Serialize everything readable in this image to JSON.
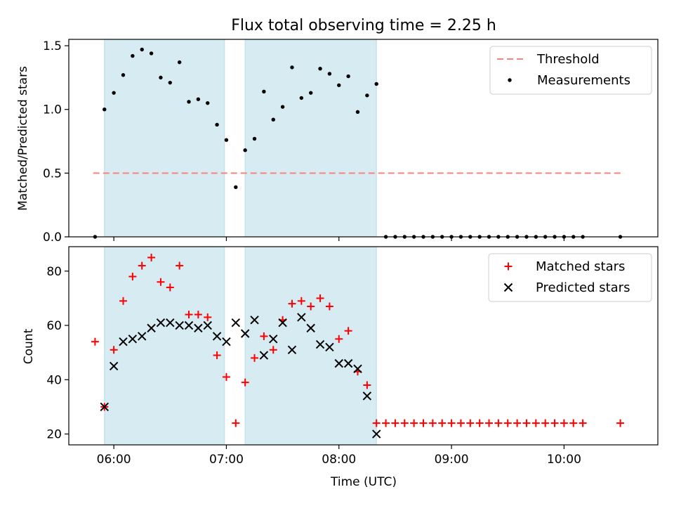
{
  "chart_data": [
    {
      "type": "scatter",
      "title": "Flux total observing time = 2.25 h",
      "ylabel": "Matched/Predicted stars",
      "xlabel": "",
      "ylim": [
        0,
        1.55
      ],
      "yticks": [
        0.0,
        0.5,
        1.0,
        1.5
      ],
      "ytick_labels": [
        "0.0",
        "0.5",
        "1.0",
        "1.5"
      ],
      "legend": {
        "position": "top-right",
        "entries": [
          "Threshold",
          "Measurements"
        ]
      },
      "threshold": {
        "name": "Threshold",
        "y": 0.5,
        "x_range": [
          "05:49",
          "10:32"
        ],
        "color": "#ff7f7f"
      },
      "series": [
        {
          "name": "Measurements",
          "color": "#000000",
          "points": [
            [
              "05:50",
              0.0
            ],
            [
              "05:55",
              1.0
            ],
            [
              "06:00",
              1.13
            ],
            [
              "06:05",
              1.27
            ],
            [
              "06:10",
              1.42
            ],
            [
              "06:15",
              1.47
            ],
            [
              "06:20",
              1.44
            ],
            [
              "06:25",
              1.25
            ],
            [
              "06:30",
              1.21
            ],
            [
              "06:35",
              1.37
            ],
            [
              "06:40",
              1.06
            ],
            [
              "06:45",
              1.08
            ],
            [
              "06:50",
              1.05
            ],
            [
              "06:55",
              0.88
            ],
            [
              "07:00",
              0.76
            ],
            [
              "07:05",
              0.39
            ],
            [
              "07:10",
              0.68
            ],
            [
              "07:15",
              0.77
            ],
            [
              "07:20",
              1.14
            ],
            [
              "07:25",
              0.92
            ],
            [
              "07:30",
              1.02
            ],
            [
              "07:35",
              1.33
            ],
            [
              "07:40",
              1.09
            ],
            [
              "07:45",
              1.13
            ],
            [
              "07:50",
              1.32
            ],
            [
              "07:55",
              1.28
            ],
            [
              "08:00",
              1.19
            ],
            [
              "08:05",
              1.26
            ],
            [
              "08:10",
              0.98
            ],
            [
              "08:15",
              1.11
            ],
            [
              "08:20",
              1.2
            ],
            [
              "08:25",
              0.0
            ],
            [
              "08:30",
              0.0
            ],
            [
              "08:35",
              0.0
            ],
            [
              "08:40",
              0.0
            ],
            [
              "08:45",
              0.0
            ],
            [
              "08:50",
              0.0
            ],
            [
              "08:55",
              0.0
            ],
            [
              "09:00",
              0.0
            ],
            [
              "09:05",
              0.0
            ],
            [
              "09:10",
              0.0
            ],
            [
              "09:15",
              0.0
            ],
            [
              "09:20",
              0.0
            ],
            [
              "09:25",
              0.0
            ],
            [
              "09:30",
              0.0
            ],
            [
              "09:35",
              0.0
            ],
            [
              "09:40",
              0.0
            ],
            [
              "09:45",
              0.0
            ],
            [
              "09:50",
              0.0
            ],
            [
              "09:55",
              0.0
            ],
            [
              "10:00",
              0.0
            ],
            [
              "10:05",
              0.0
            ],
            [
              "10:10",
              0.0
            ],
            [
              "10:30",
              0.0
            ]
          ]
        }
      ]
    },
    {
      "type": "scatter",
      "title": "",
      "xlabel": "Time (UTC)",
      "ylabel": "Count",
      "ylim": [
        16,
        89
      ],
      "yticks": [
        20,
        40,
        60,
        80
      ],
      "ytick_labels": [
        "20",
        "40",
        "60",
        "80"
      ],
      "xticks": [
        "06:00",
        "07:00",
        "08:00",
        "09:00",
        "10:00"
      ],
      "xlim": [
        "05:36",
        "10:50"
      ],
      "legend": {
        "position": "top-right",
        "entries": [
          "Matched stars",
          "Predicted stars"
        ]
      },
      "series": [
        {
          "name": "Matched stars",
          "marker": "plus",
          "color": "#ff0000",
          "points": [
            [
              "05:50",
              54
            ],
            [
              "05:55",
              30
            ],
            [
              "06:00",
              51
            ],
            [
              "06:05",
              69
            ],
            [
              "06:10",
              78
            ],
            [
              "06:15",
              82
            ],
            [
              "06:20",
              85
            ],
            [
              "06:25",
              76
            ],
            [
              "06:30",
              74
            ],
            [
              "06:35",
              82
            ],
            [
              "06:40",
              64
            ],
            [
              "06:45",
              64
            ],
            [
              "06:50",
              63
            ],
            [
              "06:55",
              49
            ],
            [
              "07:00",
              41
            ],
            [
              "07:05",
              24
            ],
            [
              "07:10",
              39
            ],
            [
              "07:15",
              48
            ],
            [
              "07:20",
              56
            ],
            [
              "07:25",
              51
            ],
            [
              "07:30",
              62
            ],
            [
              "07:35",
              68
            ],
            [
              "07:40",
              69
            ],
            [
              "07:45",
              67
            ],
            [
              "07:50",
              70
            ],
            [
              "07:55",
              67
            ],
            [
              "08:00",
              55
            ],
            [
              "08:05",
              58
            ],
            [
              "08:10",
              43
            ],
            [
              "08:15",
              38
            ],
            [
              "08:20",
              24
            ],
            [
              "08:25",
              24
            ],
            [
              "08:30",
              24
            ],
            [
              "08:35",
              24
            ],
            [
              "08:40",
              24
            ],
            [
              "08:45",
              24
            ],
            [
              "08:50",
              24
            ],
            [
              "08:55",
              24
            ],
            [
              "09:00",
              24
            ],
            [
              "09:05",
              24
            ],
            [
              "09:10",
              24
            ],
            [
              "09:15",
              24
            ],
            [
              "09:20",
              24
            ],
            [
              "09:25",
              24
            ],
            [
              "09:30",
              24
            ],
            [
              "09:35",
              24
            ],
            [
              "09:40",
              24
            ],
            [
              "09:45",
              24
            ],
            [
              "09:50",
              24
            ],
            [
              "09:55",
              24
            ],
            [
              "10:00",
              24
            ],
            [
              "10:05",
              24
            ],
            [
              "10:10",
              24
            ],
            [
              "10:30",
              24
            ]
          ]
        },
        {
          "name": "Predicted stars",
          "marker": "x",
          "color": "#000000",
          "points": [
            [
              "05:55",
              30
            ],
            [
              "06:00",
              45
            ],
            [
              "06:05",
              54
            ],
            [
              "06:10",
              55
            ],
            [
              "06:15",
              56
            ],
            [
              "06:20",
              59
            ],
            [
              "06:25",
              61
            ],
            [
              "06:30",
              61
            ],
            [
              "06:35",
              60
            ],
            [
              "06:40",
              60
            ],
            [
              "06:45",
              59
            ],
            [
              "06:50",
              60
            ],
            [
              "06:55",
              56
            ],
            [
              "07:00",
              54
            ],
            [
              "07:05",
              61
            ],
            [
              "07:10",
              57
            ],
            [
              "07:15",
              62
            ],
            [
              "07:20",
              49
            ],
            [
              "07:25",
              55
            ],
            [
              "07:30",
              61
            ],
            [
              "07:35",
              51
            ],
            [
              "07:40",
              63
            ],
            [
              "07:45",
              59
            ],
            [
              "07:50",
              53
            ],
            [
              "07:55",
              52
            ],
            [
              "08:00",
              46
            ],
            [
              "08:05",
              46
            ],
            [
              "08:10",
              44
            ],
            [
              "08:15",
              34
            ],
            [
              "08:20",
              20
            ]
          ]
        }
      ]
    }
  ],
  "observing_intervals": [
    {
      "start": "05:55",
      "end": "06:59",
      "color": "#add8e6"
    },
    {
      "start": "07:10",
      "end": "08:20",
      "color": "#add8e6"
    }
  ]
}
